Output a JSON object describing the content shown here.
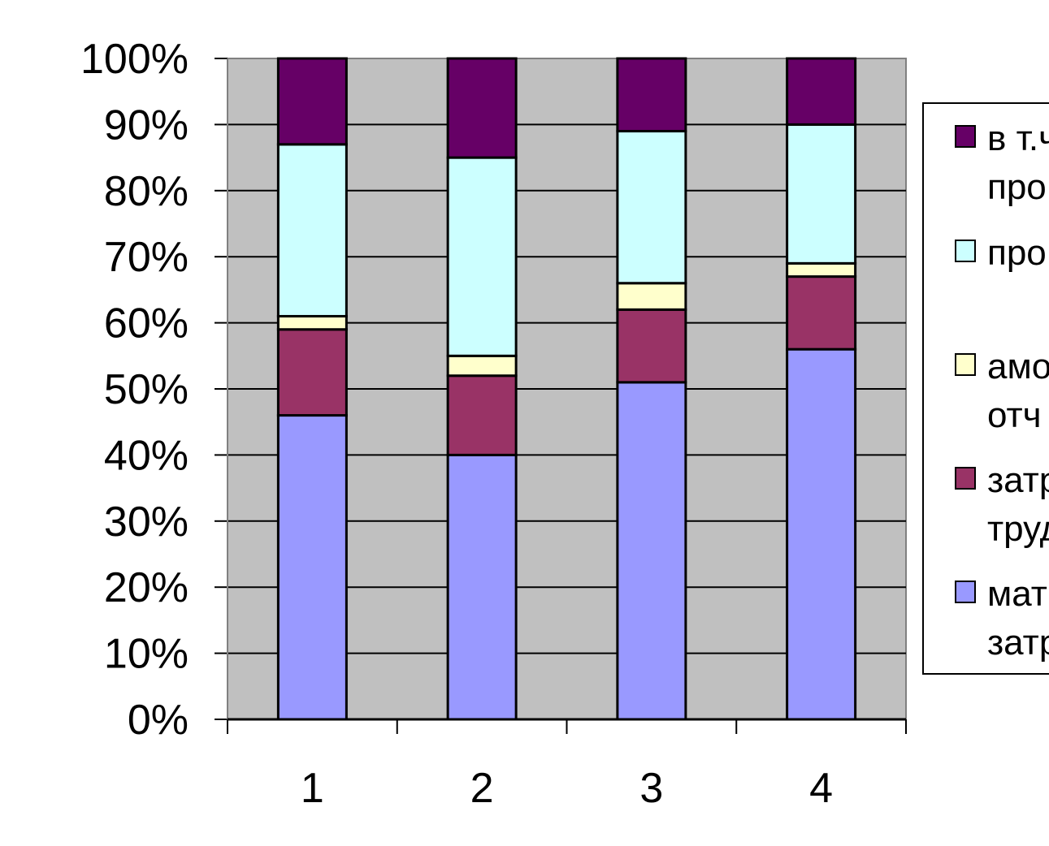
{
  "chart_data": {
    "type": "bar",
    "stacked": true,
    "percent_stacked": true,
    "categories": [
      "1",
      "2",
      "3",
      "4"
    ],
    "y_ticks": [
      "0%",
      "10%",
      "20%",
      "30%",
      "40%",
      "50%",
      "60%",
      "70%",
      "80%",
      "90%",
      "100%"
    ],
    "ylim": [
      0,
      100
    ],
    "grid": true,
    "plot_background": "#c0c0c0",
    "legend_position": "right",
    "series": [
      {
        "name": "мат\nзатр",
        "color": "#9999ff",
        "values": [
          46,
          40,
          51,
          56
        ]
      },
      {
        "name": "затр\nтруд",
        "color": "#993366",
        "values": [
          13,
          12,
          11,
          11
        ]
      },
      {
        "name": "амо\nотч",
        "color": "#ffffcc",
        "values": [
          2,
          3,
          4,
          2
        ]
      },
      {
        "name": "про",
        "color": "#ccffff",
        "values": [
          26,
          30,
          23,
          21
        ]
      },
      {
        "name": "в т.ч\nпро",
        "color": "#660066",
        "values": [
          13,
          15,
          11,
          10
        ]
      }
    ]
  }
}
